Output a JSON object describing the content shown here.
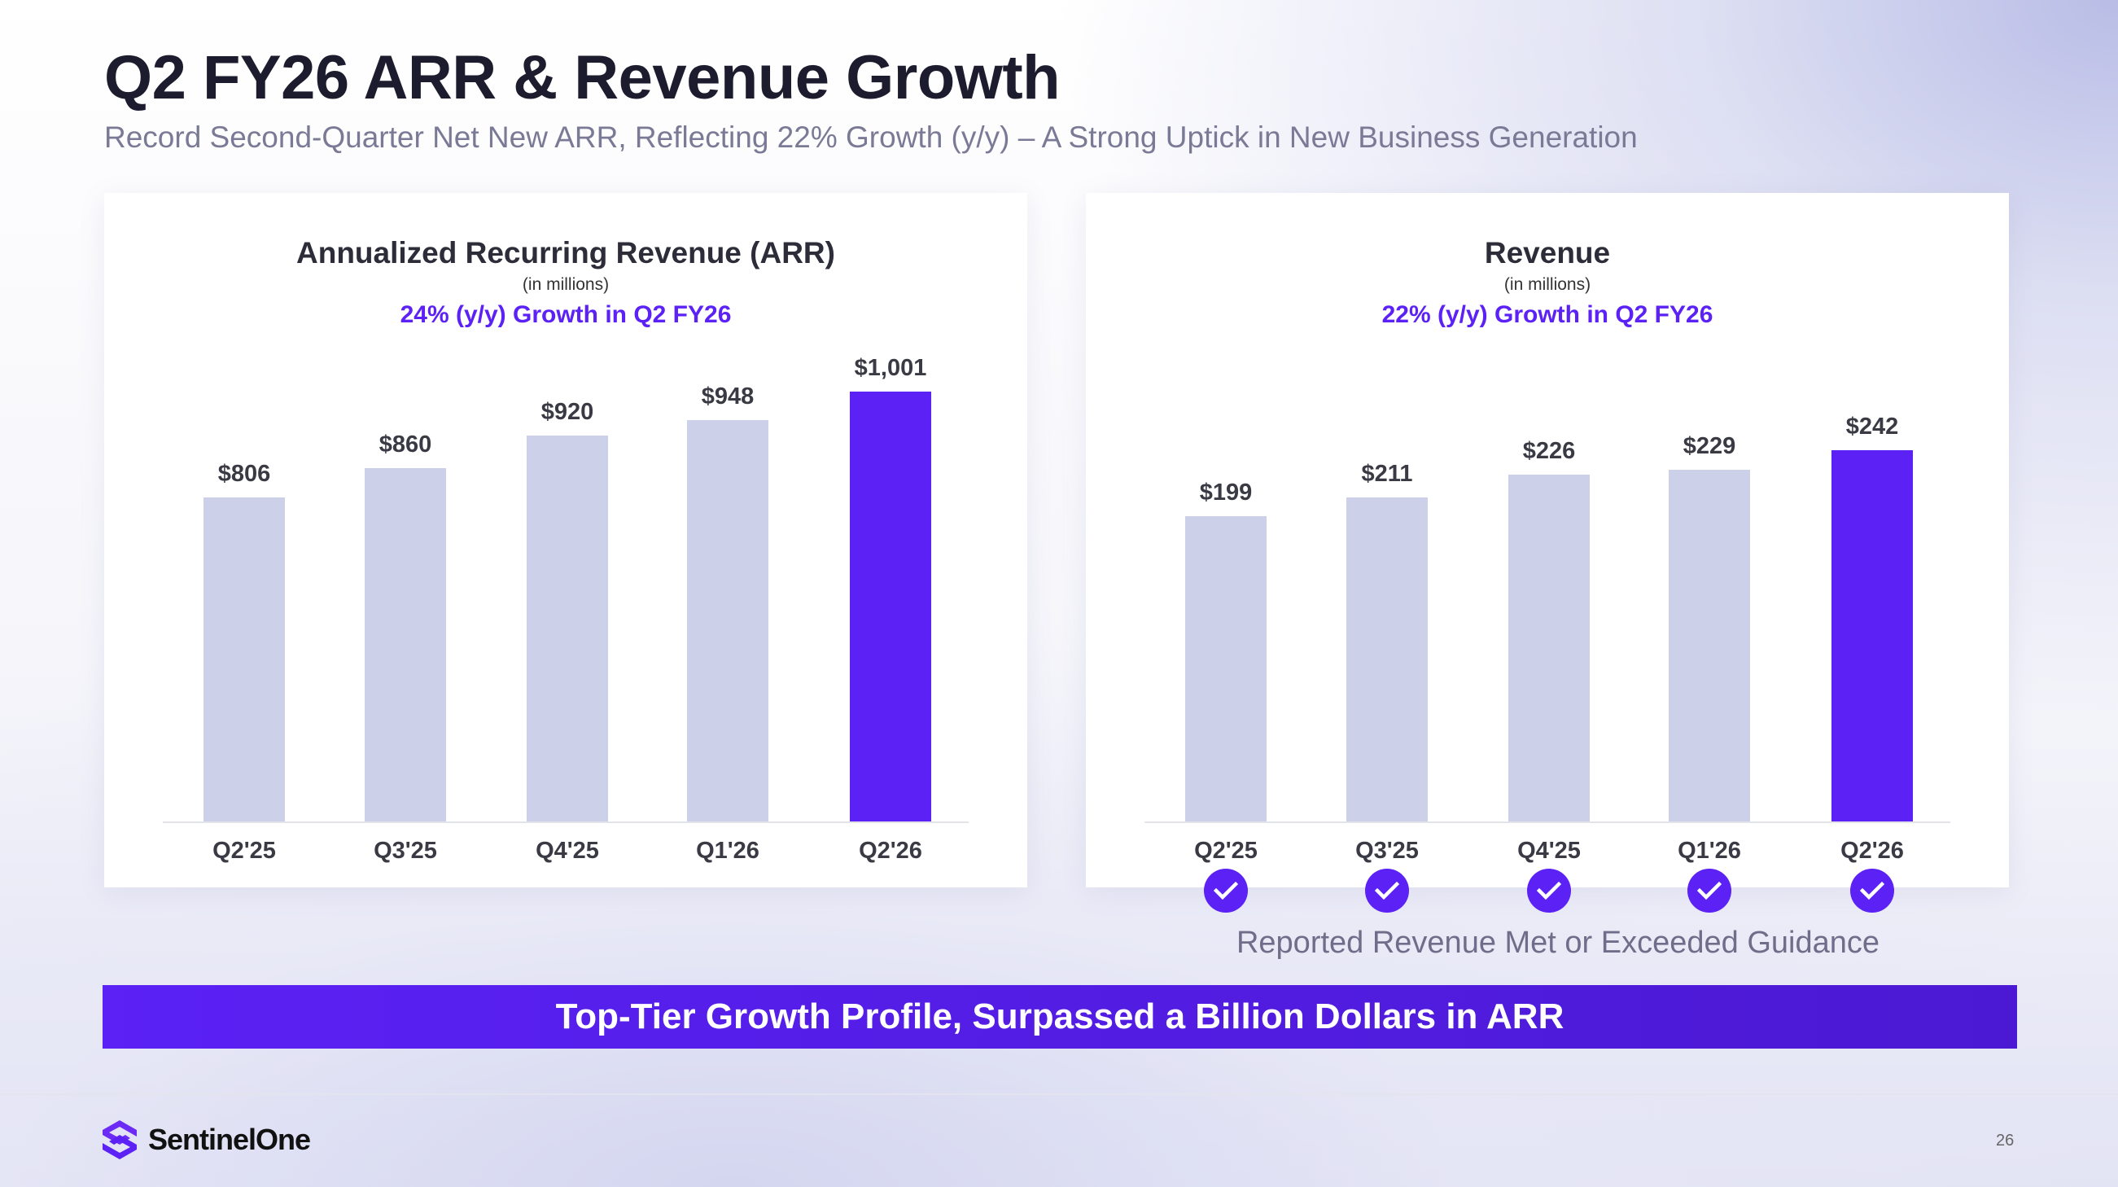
{
  "header": {
    "title": "Q2 FY26 ARR & Revenue Growth",
    "subtitle": "Record Second-Quarter Net New ARR, Reflecting 22% Growth (y/y) – A Strong Uptick in New Business Generation"
  },
  "colors": {
    "accent": "#5b21f5",
    "bar_muted": "#ccd0e8"
  },
  "chart_data": [
    {
      "type": "bar",
      "title": "Annualized Recurring Revenue (ARR)",
      "subtitle": "(in millions)",
      "annotation": "24% (y/y) Growth in Q2 FY26",
      "categories": [
        "Q2'25",
        "Q3'25",
        "Q4'25",
        "Q1'26",
        "Q2'26"
      ],
      "values": [
        806,
        860,
        920,
        948,
        1001
      ],
      "data_labels": [
        "$806",
        "$860",
        "$920",
        "$948",
        "$1,001"
      ],
      "ylim": [
        210,
        1100
      ],
      "grid": false,
      "highlight_index": 4
    },
    {
      "type": "bar",
      "title": "Revenue",
      "subtitle": "(in millions)",
      "annotation": "22% (y/y) Growth in Q2 FY26",
      "categories": [
        "Q2'25",
        "Q3'25",
        "Q4'25",
        "Q1'26",
        "Q2'26"
      ],
      "values": [
        199,
        211,
        226,
        229,
        242
      ],
      "data_labels": [
        "$199",
        "$211",
        "$226",
        "$229",
        "$242"
      ],
      "ylim": [
        0,
        315
      ],
      "grid": false,
      "highlight_index": 4
    }
  ],
  "guidance": {
    "label": "Reported Revenue Met or Exceeded Guidance",
    "checks": [
      true,
      true,
      true,
      true,
      true
    ],
    "icon": "check-circle-icon"
  },
  "banner": {
    "text": "Top-Tier Growth Profile, Surpassed a Billion Dollars in ARR"
  },
  "footer": {
    "logo": "SentinelOne",
    "page_number": "26"
  }
}
